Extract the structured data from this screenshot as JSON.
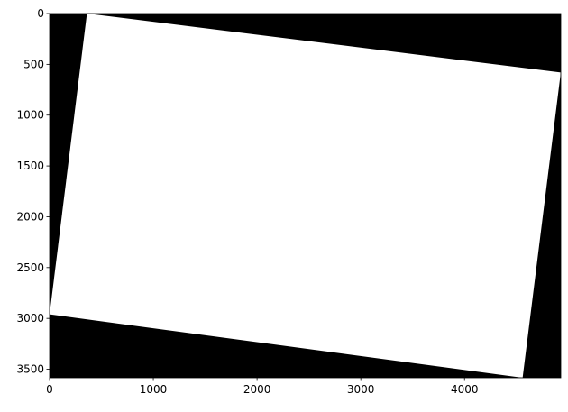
{
  "chart_data": {
    "type": "heatmap",
    "title": "",
    "xlabel": "",
    "ylabel": "",
    "image_width": 4928,
    "image_height": 3584,
    "xlim": [
      0,
      4928
    ],
    "ylim": [
      3584,
      0
    ],
    "y_inverted": true,
    "grid": false,
    "legend": "none",
    "background_value_color": "#000000",
    "mask_value_color": "#ffffff",
    "mask_polygon": [
      [
        360,
        0
      ],
      [
        4928,
        580
      ],
      [
        4560,
        3584
      ],
      [
        0,
        2960
      ]
    ],
    "x_ticks": [
      0,
      1000,
      2000,
      3000,
      4000
    ],
    "x_tick_labels": [
      "0",
      "1000",
      "2000",
      "3000",
      "4000"
    ],
    "y_ticks": [
      0,
      500,
      1000,
      1500,
      2000,
      2500,
      3000,
      3500
    ],
    "y_tick_labels": [
      "0",
      "500",
      "1000",
      "1500",
      "2000",
      "2500",
      "3000",
      "3500"
    ]
  }
}
